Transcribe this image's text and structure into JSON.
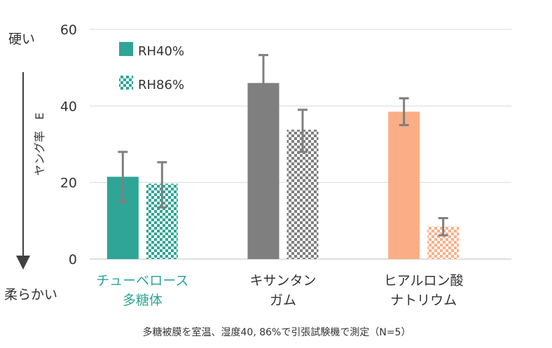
{
  "side_labels": {
    "top": "硬い",
    "bottom": "柔らかい"
  },
  "footnote": "多糖被膜を室温、湿度40, 86%で引張試験機で測定（N=5）",
  "colors": {
    "teal": "#2ea596",
    "gray": "#7f7f7f",
    "salmon": "#fbae85",
    "axis_text": "#333333",
    "grid": "#d9d9d9",
    "error_bar": "#7f7f7f",
    "arrow": "#404040"
  },
  "chart_data": {
    "type": "bar",
    "ylabel": "ヤング率　E",
    "ylim": [
      0,
      60
    ],
    "yticks": [
      0,
      20,
      40,
      60
    ],
    "grid": true,
    "legend_position": "top-left",
    "categories": [
      {
        "lines": [
          "チューベロース",
          "多糖体"
        ],
        "color": "#2ea596",
        "label_color": "#2ea596"
      },
      {
        "lines": [
          "キサンタン",
          "ガム"
        ],
        "color": "#7f7f7f",
        "label_color": "#333333"
      },
      {
        "lines": [
          "ヒアルロン酸",
          "ナトリウム"
        ],
        "color": "#fbae85",
        "label_color": "#333333"
      }
    ],
    "series": [
      {
        "name": "RH40%",
        "pattern": "solid",
        "values": [
          21.5,
          46,
          38.5
        ],
        "err_low": [
          15,
          38.5,
          35
        ],
        "err_high": [
          28,
          53.3,
          42
        ]
      },
      {
        "name": "RH86%",
        "pattern": "checker",
        "values": [
          19.7,
          33.8,
          8.5
        ],
        "err_low": [
          13.5,
          28,
          6.2
        ],
        "err_high": [
          25.3,
          39,
          10.7
        ]
      }
    ]
  }
}
